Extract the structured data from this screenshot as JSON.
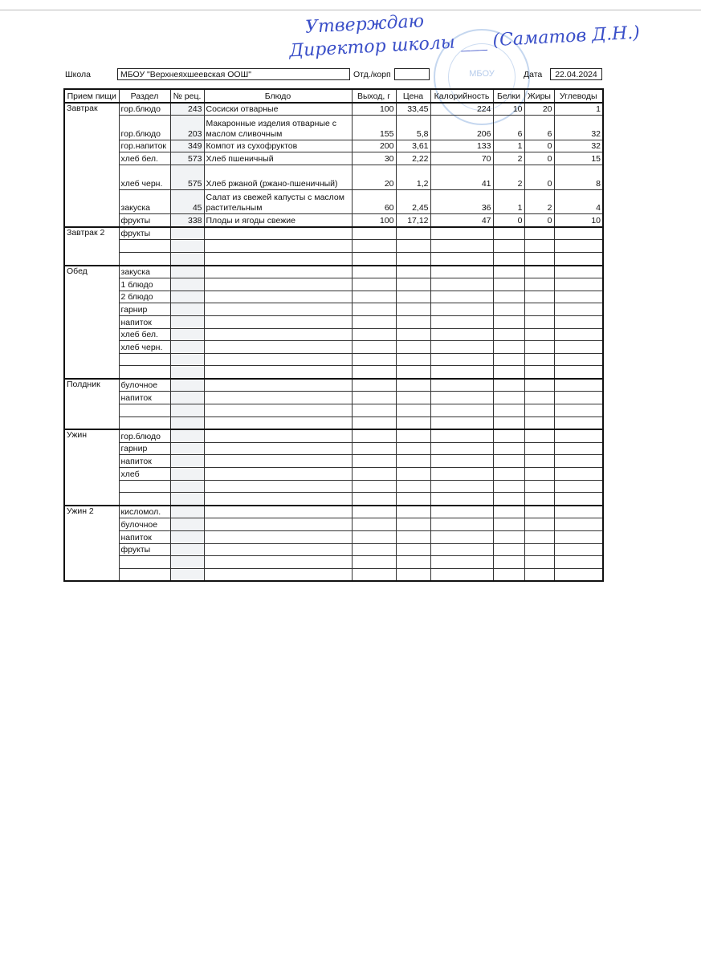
{
  "approval": {
    "line1": "Утверждаю",
    "line2": "Директор школы ___ (Саматов Д.Н.)",
    "stamp_text": "МБОУ"
  },
  "header": {
    "school_label": "Школа",
    "school": "МБОУ \"Верхнеяхшеевская ООШ\"",
    "dept_label": "Отд./корп",
    "dept": "",
    "date_label": "Дата",
    "date": "22.04.2024"
  },
  "columns": [
    "Прием пищи",
    "Раздел",
    "№ рец.",
    "Блюдо",
    "Выход, г",
    "Цена",
    "Калорийность",
    "Белки",
    "Жиры",
    "Углеводы"
  ],
  "meals": [
    {
      "name": "Завтрак",
      "rows": [
        [
          "гор.блюдо",
          "243",
          "Сосиски отварные",
          "100",
          "33,45",
          "224",
          "10",
          "20",
          "1"
        ],
        [
          "гор.блюдо",
          "203",
          "Макаронные изделия отварные с маслом сливочным",
          "155",
          "5,8",
          "206",
          "6",
          "6",
          "32"
        ],
        [
          "гор.напиток",
          "349",
          "Компот из сухофруктов",
          "200",
          "3,61",
          "133",
          "1",
          "0",
          "32"
        ],
        [
          "хлеб бел.",
          "573",
          "Хлеб пшеничный",
          "30",
          "2,22",
          "70",
          "2",
          "0",
          "15"
        ],
        [
          "хлеб черн.",
          "575",
          "Хлеб ржаной (ржано-пшеничный)",
          "20",
          "1,2",
          "41",
          "2",
          "0",
          "8"
        ],
        [
          "закуска",
          "45",
          "Салат из свежей капусты с маслом растительным",
          "60",
          "2,45",
          "36",
          "1",
          "2",
          "4"
        ],
        [
          "фрукты",
          "338",
          "Плоды и ягоды свежие",
          "100",
          "17,12",
          "47",
          "0",
          "0",
          "10"
        ]
      ]
    },
    {
      "name": "Завтрак 2",
      "rows": [
        [
          "фрукты"
        ],
        [
          ""
        ],
        [
          ""
        ]
      ]
    },
    {
      "name": "Обед",
      "rows": [
        [
          "закуска"
        ],
        [
          "1 блюдо"
        ],
        [
          "2 блюдо"
        ],
        [
          "гарнир"
        ],
        [
          "напиток"
        ],
        [
          "хлеб бел."
        ],
        [
          "хлеб черн."
        ],
        [
          ""
        ],
        [
          ""
        ]
      ]
    },
    {
      "name": "Полдник",
      "rows": [
        [
          "булочное"
        ],
        [
          "напиток"
        ],
        [
          ""
        ],
        [
          ""
        ]
      ]
    },
    {
      "name": "Ужин",
      "rows": [
        [
          "гор.блюдо"
        ],
        [
          "гарнир"
        ],
        [
          "напиток"
        ],
        [
          "хлеб"
        ],
        [
          ""
        ],
        [
          ""
        ]
      ]
    },
    {
      "name": "Ужин 2",
      "rows": [
        [
          "кисломол."
        ],
        [
          "булочное"
        ],
        [
          "напиток"
        ],
        [
          "фрукты"
        ],
        [
          ""
        ],
        [
          ""
        ]
      ]
    }
  ]
}
